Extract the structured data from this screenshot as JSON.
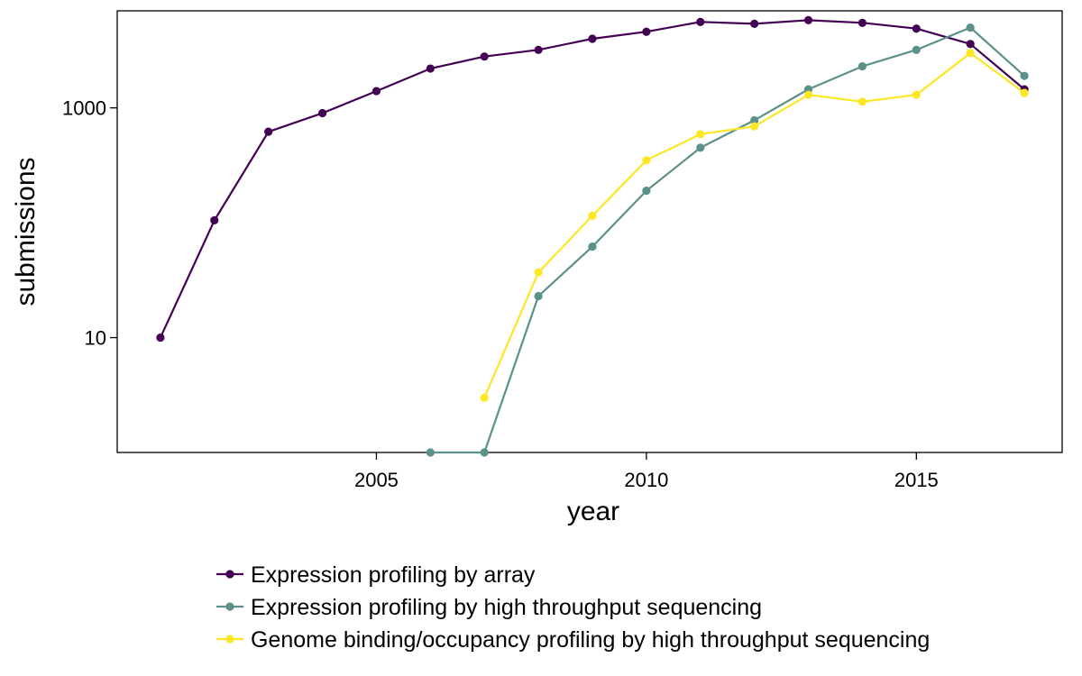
{
  "chart_data": {
    "type": "line",
    "title": "",
    "xlabel": "year",
    "ylabel": "submissions",
    "y_scale": "log10",
    "xlim": [
      2000.2,
      2017.7
    ],
    "ylim": [
      1,
      7000
    ],
    "x_ticks": [
      2005,
      2010,
      2015
    ],
    "x_tick_labels": [
      "2005",
      "2010",
      "2015"
    ],
    "y_ticks": [
      10,
      1000
    ],
    "y_tick_labels": [
      "10",
      "1000"
    ],
    "grid": false,
    "legend_position": "bottom",
    "series": [
      {
        "name": "Expression profiling by array",
        "color": "#440154",
        "x": [
          2001,
          2002,
          2003,
          2004,
          2005,
          2006,
          2007,
          2008,
          2009,
          2010,
          2011,
          2012,
          2013,
          2014,
          2015,
          2016,
          2017
        ],
        "y": [
          10,
          105,
          620,
          900,
          1400,
          2200,
          2800,
          3200,
          4000,
          4600,
          5600,
          5400,
          5800,
          5500,
          4900,
          3600,
          1450
        ]
      },
      {
        "name": "Expression profiling by high throughput sequencing",
        "color": "#5b9189",
        "x": [
          2006,
          2007,
          2008,
          2009,
          2010,
          2011,
          2012,
          2013,
          2014,
          2015,
          2016,
          2017
        ],
        "y": [
          1,
          1,
          23,
          62,
          190,
          450,
          780,
          1450,
          2300,
          3200,
          5000,
          1900
        ]
      },
      {
        "name": "Genome binding/occupancy profiling by high throughput sequencing",
        "color": "#fde725",
        "x": [
          2007,
          2008,
          2009,
          2010,
          2011,
          2012,
          2013,
          2014,
          2015,
          2016,
          2017
        ],
        "y": [
          3,
          37,
          115,
          350,
          590,
          690,
          1300,
          1130,
          1300,
          3000,
          1350
        ]
      }
    ]
  }
}
